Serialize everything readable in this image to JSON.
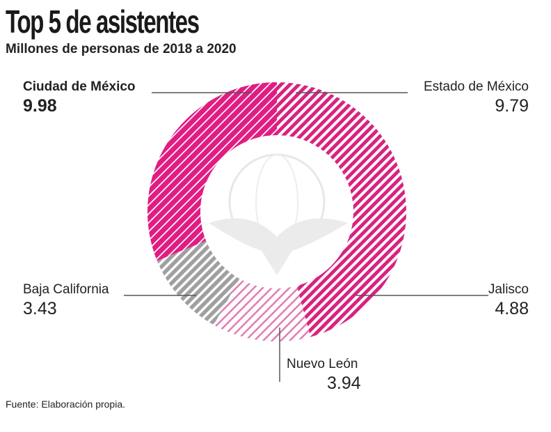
{
  "chart_data": {
    "type": "pie",
    "variant": "donut",
    "title": "Top 5 de asistentes",
    "subtitle": "Millones de personas de 2018 a 2020",
    "slices": [
      {
        "label": "Estado de México",
        "value": 9.79,
        "value_label": "9.79",
        "color": "#d8237f",
        "pattern": "stripes-wide"
      },
      {
        "label": "Jalisco",
        "value": 4.88,
        "value_label": "4.88",
        "color": "#d8237f",
        "pattern": "stripes-wide"
      },
      {
        "label": "Nuevo León",
        "value": 3.94,
        "value_label": "3.94",
        "color": "#e79bc4",
        "pattern": "stripes-thin-light"
      },
      {
        "label": "Baja California",
        "value": 3.43,
        "value_label": "3.43",
        "color": "#a0a0a0",
        "pattern": "stripes-gray"
      },
      {
        "label": "Ciudad de México",
        "value": 9.98,
        "value_label": "9.98",
        "color": "#e01d82",
        "pattern": "stripes-dense",
        "highlight": true
      }
    ],
    "source": "Fuente: Elaboración propia."
  }
}
